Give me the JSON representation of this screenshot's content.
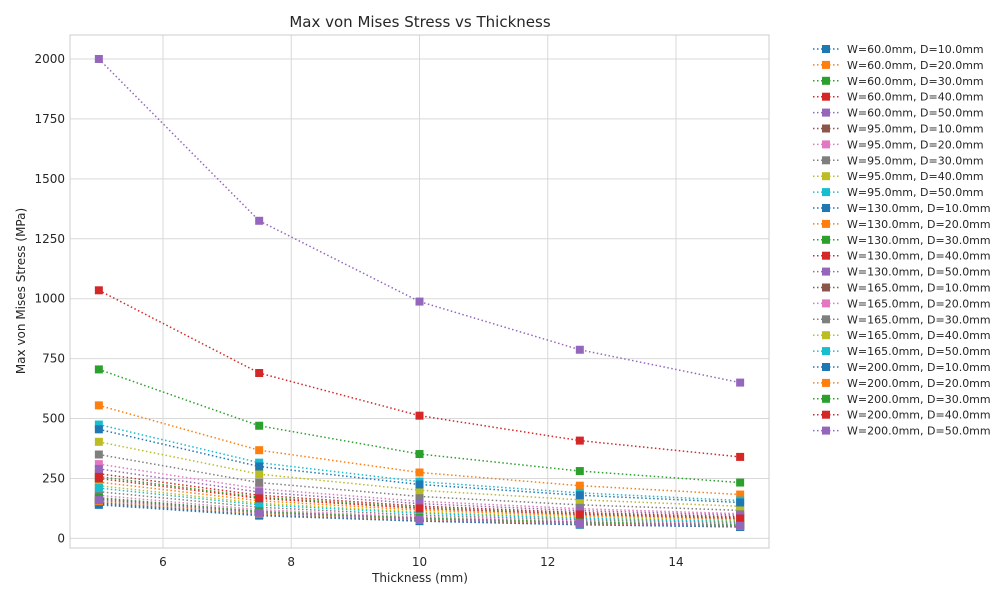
{
  "chart_data": {
    "type": "line",
    "title": "Max von Mises Stress vs Thickness",
    "xlabel": "Thickness (mm)",
    "ylabel": "Max von Mises Stress (MPa)",
    "x": [
      5,
      7.5,
      10,
      12.5,
      15
    ],
    "xlim": [
      4.55,
      15.45
    ],
    "ylim": [
      -40,
      2100
    ],
    "xticks": [
      6,
      8,
      10,
      12,
      14
    ],
    "yticks": [
      0,
      250,
      500,
      750,
      1000,
      1250,
      1500,
      1750,
      2000
    ],
    "grid": true,
    "legend_position": "outside-right",
    "line_style": "dotted",
    "marker": "square",
    "series": [
      {
        "name": "W=60.0mm, D=10.0mm",
        "color": "#1f77b4",
        "values": [
          140,
          95,
          72,
          57,
          48
        ]
      },
      {
        "name": "W=60.0mm, D=20.0mm",
        "color": "#ff7f0e",
        "values": [
          555,
          368,
          275,
          220,
          183
        ]
      },
      {
        "name": "W=60.0mm, D=30.0mm",
        "color": "#2ca02c",
        "values": [
          705,
          470,
          352,
          281,
          233
        ]
      },
      {
        "name": "W=60.0mm, D=40.0mm",
        "color": "#d62728",
        "values": [
          1035,
          690,
          512,
          408,
          340
        ]
      },
      {
        "name": "W=60.0mm, D=50.0mm",
        "color": "#9467bd",
        "values": [
          2000,
          1325,
          988,
          787,
          650
        ]
      },
      {
        "name": "W=95.0mm, D=10.0mm",
        "color": "#8c564b",
        "values": [
          150,
          100,
          75,
          60,
          50
        ]
      },
      {
        "name": "W=95.0mm, D=20.0mm",
        "color": "#e377c2",
        "values": [
          310,
          207,
          155,
          124,
          103
        ]
      },
      {
        "name": "W=95.0mm, D=30.0mm",
        "color": "#7f7f7f",
        "values": [
          350,
          233,
          175,
          140,
          117
        ]
      },
      {
        "name": "W=95.0mm, D=40.0mm",
        "color": "#bcbd22",
        "values": [
          403,
          268,
          201,
          161,
          134
        ]
      },
      {
        "name": "W=95.0mm, D=50.0mm",
        "color": "#17becf",
        "values": [
          475,
          316,
          237,
          190,
          158
        ]
      },
      {
        "name": "W=130.0mm, D=10.0mm",
        "color": "#1f77b4",
        "values": [
          455,
          300,
          225,
          180,
          150
        ]
      },
      {
        "name": "W=130.0mm, D=20.0mm",
        "color": "#ff7f0e",
        "values": [
          235,
          157,
          118,
          94,
          78
        ]
      },
      {
        "name": "W=130.0mm, D=30.0mm",
        "color": "#2ca02c",
        "values": [
          258,
          172,
          129,
          103,
          86
        ]
      },
      {
        "name": "W=130.0mm, D=40.0mm",
        "color": "#d62728",
        "values": [
          270,
          180,
          135,
          108,
          90
        ]
      },
      {
        "name": "W=130.0mm, D=50.0mm",
        "color": "#9467bd",
        "values": [
          290,
          193,
          145,
          116,
          97
        ]
      },
      {
        "name": "W=165.0mm, D=10.0mm",
        "color": "#8c564b",
        "values": [
          165,
          110,
          83,
          66,
          55
        ]
      },
      {
        "name": "W=165.0mm, D=20.0mm",
        "color": "#e377c2",
        "values": [
          180,
          120,
          90,
          72,
          60
        ]
      },
      {
        "name": "W=165.0mm, D=30.0mm",
        "color": "#7f7f7f",
        "values": [
          195,
          130,
          97,
          78,
          65
        ]
      },
      {
        "name": "W=165.0mm, D=40.0mm",
        "color": "#bcbd22",
        "values": [
          220,
          147,
          110,
          88,
          73
        ]
      },
      {
        "name": "W=165.0mm, D=50.0mm",
        "color": "#17becf",
        "values": [
          210,
          140,
          105,
          84,
          70
        ]
      },
      {
        "name": "W=200.0mm, D=10.0mm",
        "color": "#1f77b4",
        "values": [
          145,
          97,
          73,
          58,
          48
        ]
      },
      {
        "name": "W=200.0mm, D=20.0mm",
        "color": "#ff7f0e",
        "values": [
          155,
          103,
          78,
          62,
          52
        ]
      },
      {
        "name": "W=200.0mm, D=30.0mm",
        "color": "#2ca02c",
        "values": [
          170,
          113,
          85,
          68,
          57
        ]
      },
      {
        "name": "W=200.0mm, D=40.0mm",
        "color": "#d62728",
        "values": [
          250,
          167,
          125,
          100,
          83
        ]
      },
      {
        "name": "W=200.0mm, D=50.0mm",
        "color": "#9467bd",
        "values": [
          160,
          107,
          80,
          64,
          53
        ]
      }
    ]
  }
}
